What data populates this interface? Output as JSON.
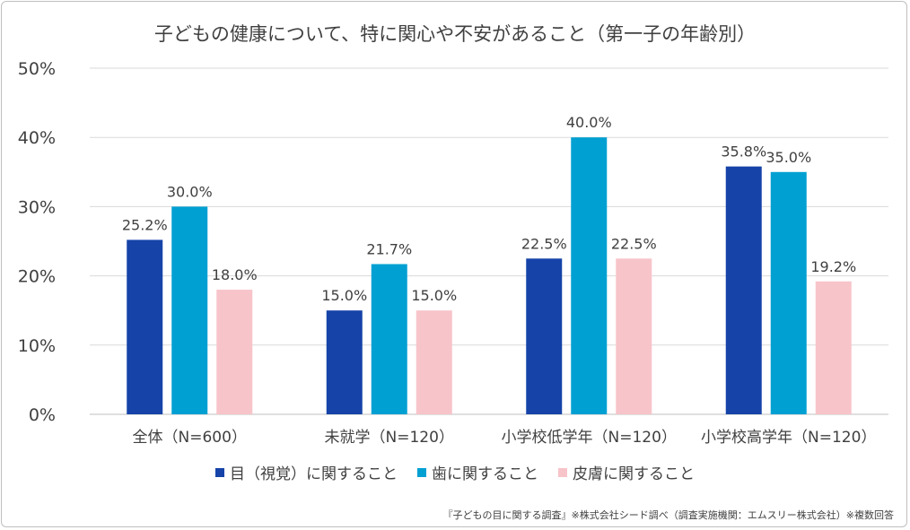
{
  "chart_data": {
    "type": "bar",
    "title": "子どもの健康について、特に関心や不安があること（第一子の年齢別）",
    "categories": [
      "全体（N=600）",
      "未就学（N=120）",
      "小学校低学年（N=120）",
      "小学校高学年（N=120）"
    ],
    "series": [
      {
        "name": "目（視覚）に関すること",
        "color": "#1543a8",
        "values": [
          25.2,
          15.0,
          22.5,
          35.8
        ],
        "labels": [
          "25.2%",
          "15.0%",
          "22.5%",
          "35.8%"
        ]
      },
      {
        "name": "歯に関すること",
        "color": "#00a0d2",
        "values": [
          30.0,
          21.7,
          40.0,
          35.0
        ],
        "labels": [
          "30.0%",
          "21.7%",
          "40.0%",
          "35.0%"
        ]
      },
      {
        "name": "皮膚に関すること",
        "color": "#f7c4ca",
        "values": [
          18.0,
          15.0,
          22.5,
          19.2
        ],
        "labels": [
          "18.0%",
          "15.0%",
          "22.5%",
          "19.2%"
        ]
      }
    ],
    "ylim": [
      0,
      50
    ],
    "yticks": [
      0,
      10,
      20,
      30,
      40,
      50
    ],
    "ytick_labels": [
      "0%",
      "10%",
      "20%",
      "30%",
      "40%",
      "50%"
    ],
    "grid": true,
    "legend": "bottom"
  },
  "footnote": "『子どもの目に関する調査』※株式会社シード調べ（調査実施機関：エムスリー株式会社）※複数回答"
}
